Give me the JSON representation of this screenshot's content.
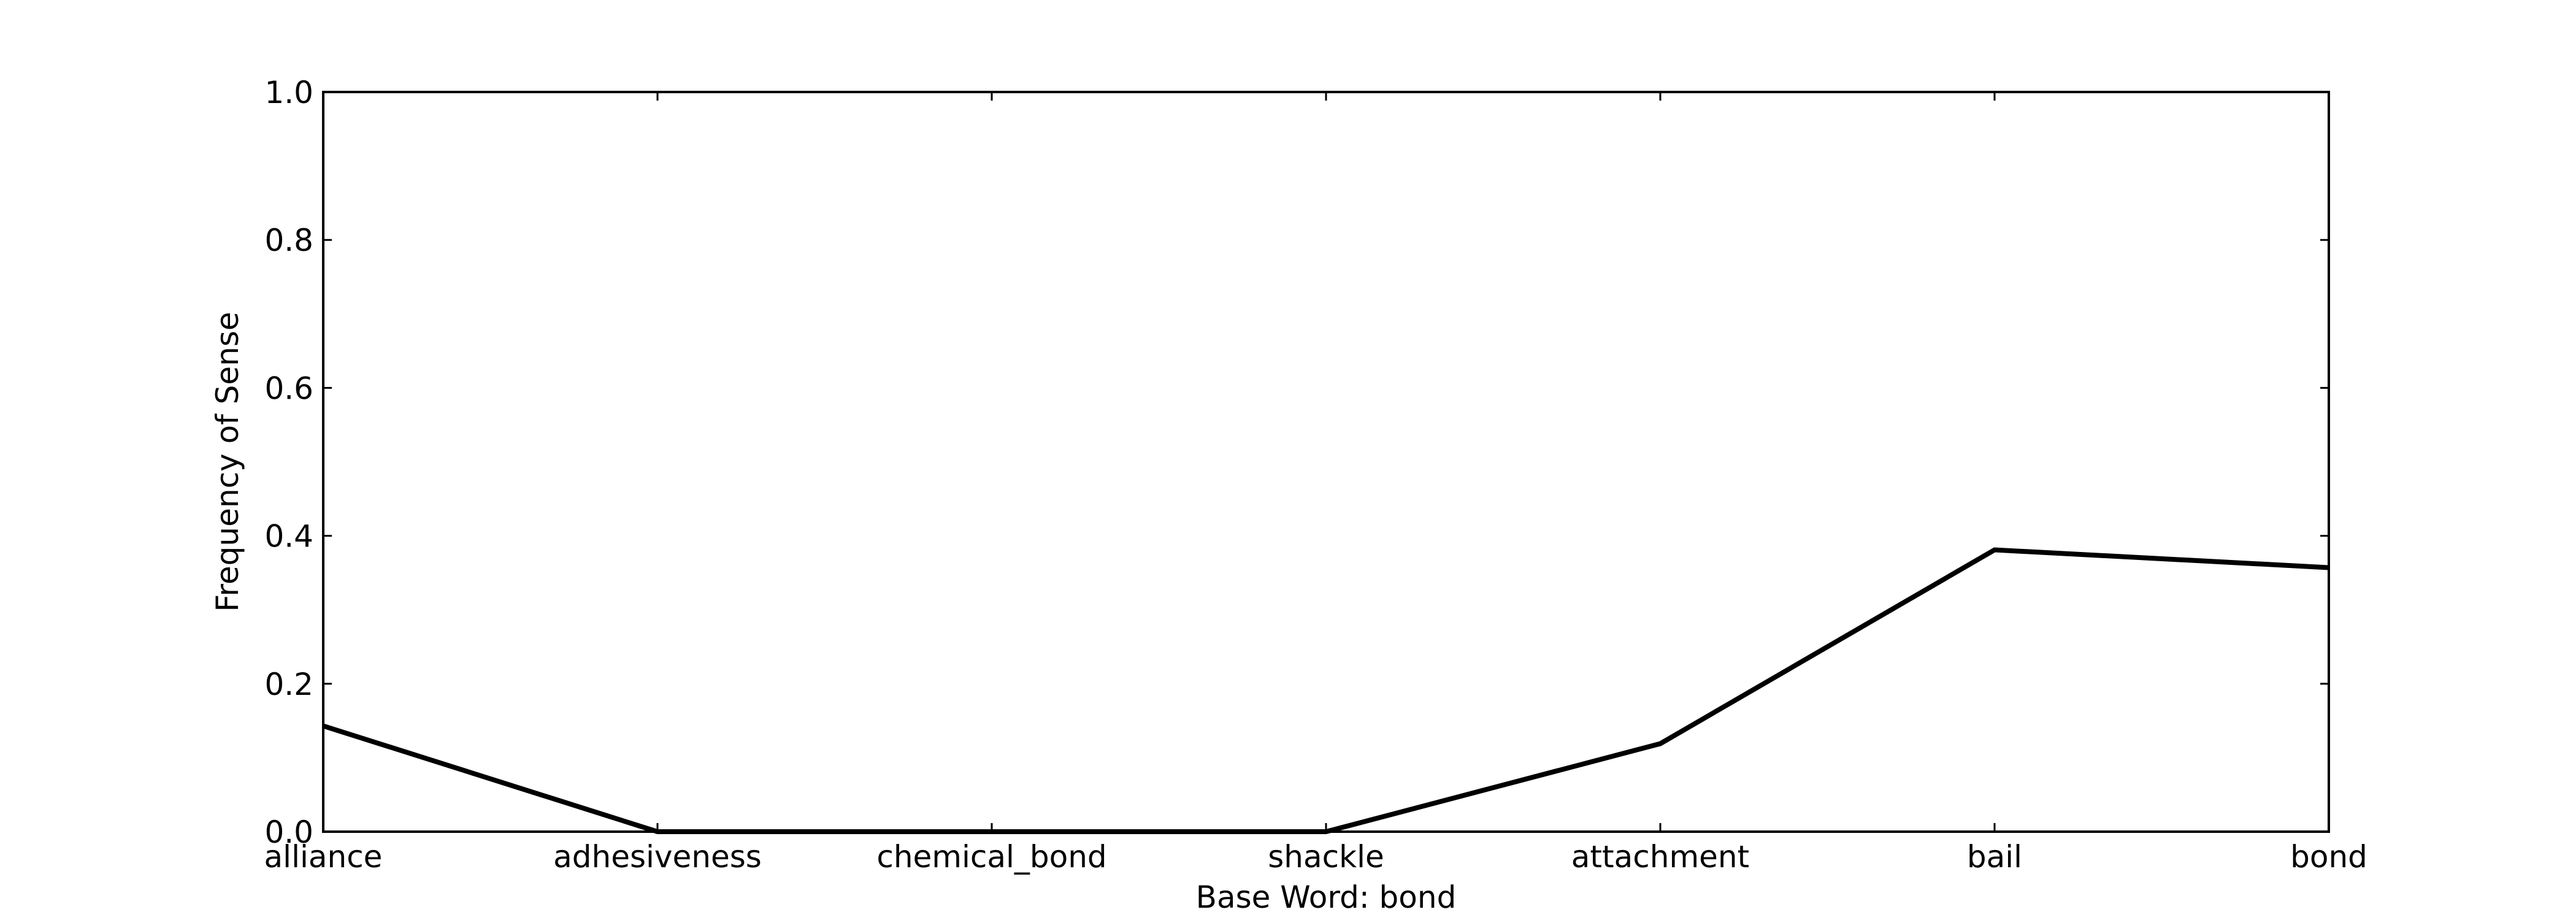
{
  "chart_data": {
    "type": "line",
    "title": "",
    "xlabel": "Base Word: bond",
    "ylabel": "Frequency of Sense",
    "categories": [
      "alliance",
      "adhesiveness",
      "chemical_bond",
      "shackle",
      "attachment",
      "bail",
      "bond"
    ],
    "series": [
      {
        "values": [
          0.143,
          0.0,
          0.0,
          0.0,
          0.119,
          0.381,
          0.357
        ],
        "color": "#000000"
      }
    ],
    "ylim": [
      0,
      1.0
    ],
    "yticks": [
      "0.0",
      "0.2",
      "0.4",
      "0.6",
      "0.8",
      "1.0"
    ],
    "grid": false,
    "legend": "none"
  }
}
